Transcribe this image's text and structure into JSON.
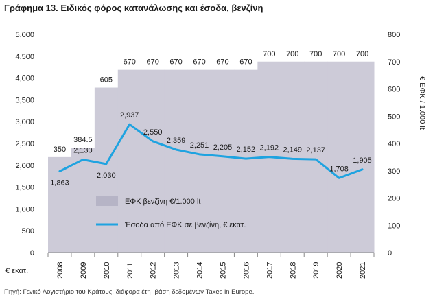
{
  "title": "Γράφημα 13. Ειδικός φόρος κατανάλωσης και έσοδα, βενζίνη",
  "footnote": "Πηγή: Γενικό Λογιστήριο του Κράτους, διάφορα έτη· βάση δεδομένων Taxes in Europe.",
  "y_left_unit": "€ εκατ.",
  "y_right_label": "€ ΕΦΚ / 1.000 lt",
  "y_left_ticks": [
    "0",
    "500",
    "1,000",
    "1,500",
    "2,000",
    "2,500",
    "3,000",
    "3,500",
    "4,000",
    "4,500",
    "5,000"
  ],
  "y_right_ticks": [
    "0",
    "100",
    "200",
    "300",
    "400",
    "500",
    "600",
    "700",
    "800"
  ],
  "legend": {
    "tax": "ΕΦΚ βενζίνη €/1.000 lt",
    "revenue": "Έσοδα από ΕΦΚ σε βενζίνη, € εκατ."
  },
  "colors": {
    "area": "#cdcbd8",
    "line": "#1fa3e0",
    "text": "#1a1a1a"
  },
  "chart_data": {
    "type": "area",
    "title": "Γράφημα 13. Ειδικός φόρος κατανάλωσης και έσοδα, βενζίνη",
    "categories": [
      "2008",
      "2009",
      "2010",
      "2011",
      "2012",
      "2013",
      "2014",
      "2015",
      "2016",
      "2017",
      "2018",
      "2019",
      "2020",
      "2021"
    ],
    "y_left_range": [
      0,
      5000
    ],
    "y_right_range": [
      0,
      800
    ],
    "series": [
      {
        "name": "ΕΦΚ βενζίνη €/1.000 lt",
        "type": "area-step",
        "axis": "right",
        "values": [
          350,
          384.5,
          605,
          670,
          670,
          670,
          670,
          670,
          670,
          700,
          700,
          700,
          700,
          700
        ],
        "labels": [
          "350",
          "384.5",
          "605",
          "670",
          "670",
          "670",
          "670",
          "670",
          "670",
          "700",
          "700",
          "700",
          "700",
          "700"
        ]
      },
      {
        "name": "Έσοδα από ΕΦΚ σε βενζίνη, € εκατ.",
        "type": "line",
        "axis": "left",
        "values": [
          1863,
          2130,
          2030,
          2937,
          2550,
          2359,
          2251,
          2205,
          2152,
          2192,
          2149,
          2137,
          1708,
          1905
        ],
        "labels": [
          "1,863",
          "2,130",
          "2,030",
          "2,937",
          "2,550",
          "2,359",
          "2,251",
          "2,205",
          "2,152",
          "2,192",
          "2,149",
          "2,137",
          "1,708",
          "1,905"
        ]
      }
    ],
    "grid": false,
    "legend_position": "inside-bottom-left"
  }
}
